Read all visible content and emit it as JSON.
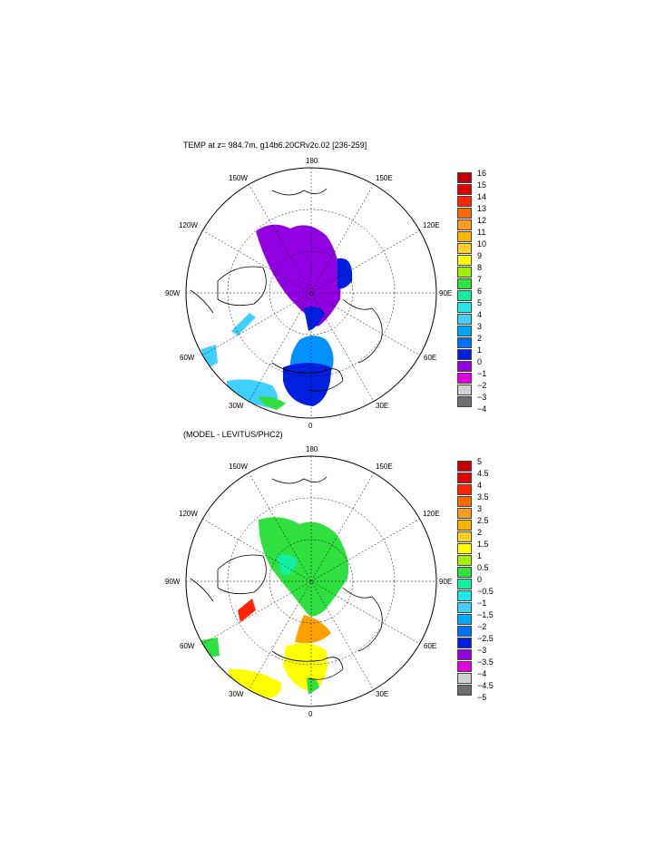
{
  "panel1": {
    "title": "TEMP at z= 984.7m, g14b6.20CRv2c.02 [236-259]",
    "colorbar": {
      "labels": [
        "16",
        "15",
        "14",
        "13",
        "12",
        "11",
        "10",
        "9",
        "8",
        "7",
        "6",
        "5",
        "4",
        "3",
        "2",
        "1",
        "0",
        "−1",
        "−2",
        "−3",
        "−4"
      ],
      "colors": [
        "#c80000",
        "#e00000",
        "#ff2400",
        "#ff6a00",
        "#ff9a20",
        "#ffb400",
        "#ffd020",
        "#ffff00",
        "#a0f000",
        "#30e040",
        "#10f0a0",
        "#20e8e8",
        "#40d0ff",
        "#00a8ff",
        "#0070ff",
        "#0020e0",
        "#9000e0",
        "#e000e0",
        "#d0d0d0",
        "#707070"
      ]
    }
  },
  "panel2": {
    "title": "(MODEL - LEVITUS/PHC2)",
    "colorbar": {
      "labels": [
        "5",
        "4.5",
        "4",
        "3.5",
        "3",
        "2.5",
        "2",
        "1.5",
        "1",
        "0.5",
        "0",
        "−0.5",
        "−1",
        "−1.5",
        "−2",
        "−2.5",
        "−3",
        "−3.5",
        "−4",
        "−4.5",
        "−5"
      ],
      "colors": [
        "#c80000",
        "#e00000",
        "#ff2400",
        "#ff6a00",
        "#ff9a20",
        "#ffb400",
        "#ffd020",
        "#ffff00",
        "#a0f000",
        "#30e040",
        "#10f0a0",
        "#20e8e8",
        "#40d0ff",
        "#00a8ff",
        "#0070ff",
        "#0020e0",
        "#9000e0",
        "#e000e0",
        "#d0d0d0",
        "#707070"
      ]
    }
  },
  "map_labels": {
    "top": "180",
    "bottom": "0",
    "left": "90W",
    "right": "90E",
    "ul1": "150W",
    "ul2": "120W",
    "ur1": "150E",
    "ur2": "120E",
    "ll1": "60W",
    "ll2": "30W",
    "lr1": "60E",
    "lr2": "30E"
  },
  "colors": {
    "purple": "#9000e0",
    "blue": "#0020e0",
    "lightblue": "#0090ff",
    "cyan": "#40d0ff",
    "green": "#30e040",
    "yellow": "#ffff00",
    "orange": "#ffa000",
    "red": "#ff2400"
  }
}
